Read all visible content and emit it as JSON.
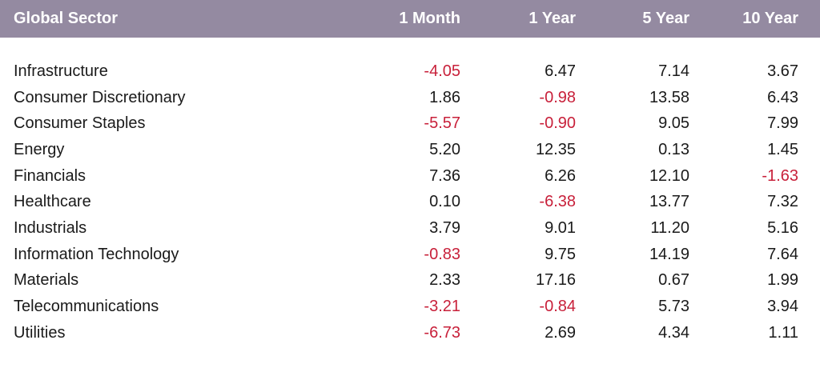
{
  "chart_data": {
    "type": "table",
    "columns": [
      "Global Sector",
      "1 Month",
      "1 Year",
      "5 Year",
      "10 Year"
    ],
    "rows": [
      {
        "sector": "Infrastructure",
        "values": [
          "-4.05",
          "6.47",
          "7.14",
          "3.67"
        ]
      },
      {
        "sector": "Consumer Discretionary",
        "values": [
          "1.86",
          "-0.98",
          "13.58",
          "6.43"
        ]
      },
      {
        "sector": "Consumer Staples",
        "values": [
          "-5.57",
          "-0.90",
          "9.05",
          "7.99"
        ]
      },
      {
        "sector": "Energy",
        "values": [
          "5.20",
          "12.35",
          "0.13",
          "1.45"
        ]
      },
      {
        "sector": "Financials",
        "values": [
          "7.36",
          "6.26",
          "12.10",
          "-1.63"
        ]
      },
      {
        "sector": "Healthcare",
        "values": [
          "0.10",
          "-6.38",
          "13.77",
          "7.32"
        ]
      },
      {
        "sector": "Industrials",
        "values": [
          "3.79",
          "9.01",
          "11.20",
          "5.16"
        ]
      },
      {
        "sector": "Information Technology",
        "values": [
          "-0.83",
          "9.75",
          "14.19",
          "7.64"
        ]
      },
      {
        "sector": "Materials",
        "values": [
          "2.33",
          "17.16",
          "0.67",
          "1.99"
        ]
      },
      {
        "sector": "Telecommunications",
        "values": [
          "-3.21",
          "-0.84",
          "5.73",
          "3.94"
        ]
      },
      {
        "sector": "Utilities",
        "values": [
          "-6.73",
          "2.69",
          "4.34",
          "1.11"
        ]
      }
    ],
    "colors": {
      "header_background": "#948aa1",
      "header_text": "#ffffff",
      "negative": "#c8203a",
      "positive": "#1a1a1a"
    }
  }
}
